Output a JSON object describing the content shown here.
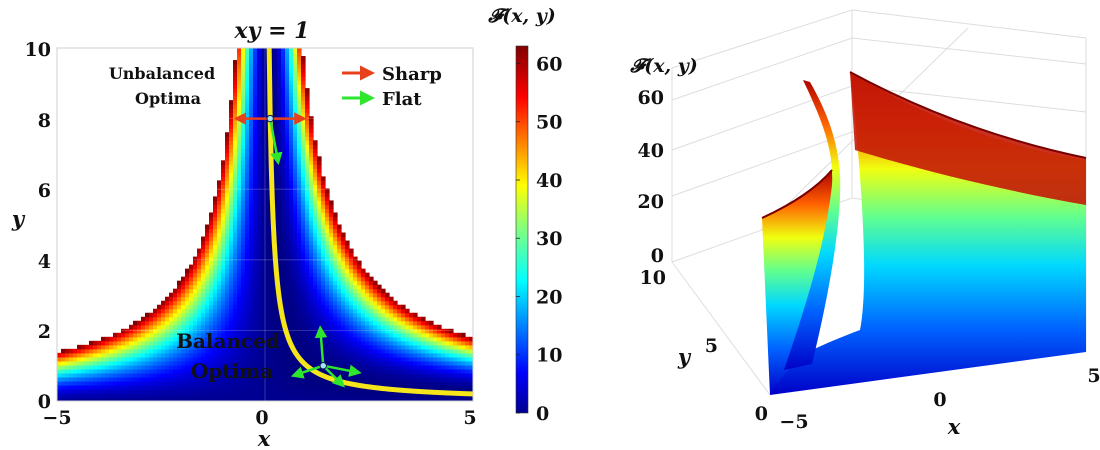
{
  "chart_data": [
    {
      "type": "heatmap",
      "xlabel": "x",
      "ylabel": "y",
      "colorbar_label": "𝓕(x, y)",
      "xlim": [
        -5,
        5
      ],
      "ylim": [
        0,
        10
      ],
      "x_ticks": [
        "−5",
        "0",
        "5"
      ],
      "y_ticks": [
        "0",
        "2",
        "4",
        "6",
        "8",
        "10"
      ],
      "colorbar_ticks": [
        "0",
        "10",
        "20",
        "30",
        "40",
        "50",
        "60"
      ],
      "colorbar_range": [
        0,
        63
      ],
      "colormap": "jet",
      "curve_label": "xy = 1",
      "annotations": {
        "unbalanced": [
          "Unbalanced",
          "Optima"
        ],
        "balanced": [
          "Balanced",
          "Optima"
        ]
      },
      "legend": [
        {
          "label": "Sharp",
          "color": "#e8401a"
        },
        {
          "label": "Flat",
          "color": "#2ee62e"
        }
      ],
      "points": [
        {
          "name": "unbalanced",
          "x": 0.125,
          "y": 8
        },
        {
          "name": "balanced",
          "x": 1.4,
          "y": 1.0
        }
      ],
      "curve_color": "#f5e51b",
      "annotation_balanced_color": "#f2e24a"
    },
    {
      "type": "surface",
      "zlabel": "𝓕(x, y)",
      "xlabel": "x",
      "ylabel": "y",
      "z_ticks": [
        "0",
        "20",
        "40",
        "60"
      ],
      "x_ticks": [
        "−5",
        "0",
        "5"
      ],
      "y_ticks": [
        "0",
        "5",
        "10"
      ],
      "colormap": "jet"
    }
  ]
}
